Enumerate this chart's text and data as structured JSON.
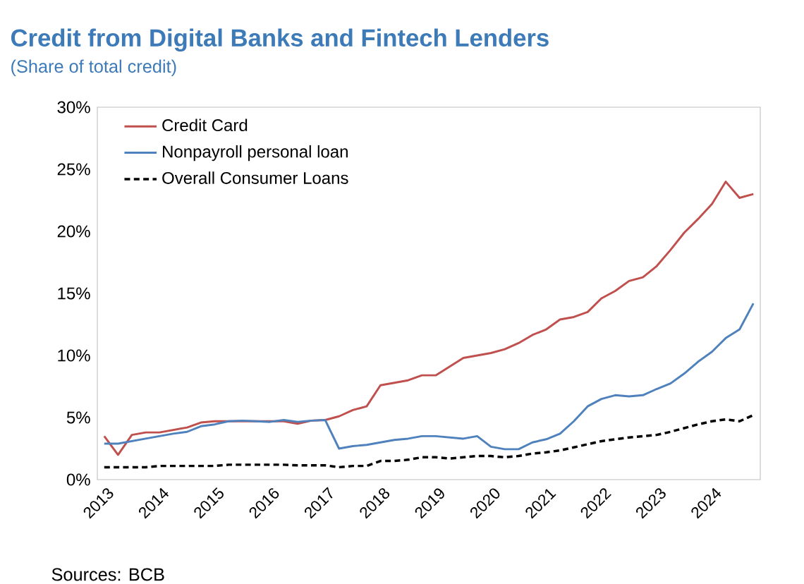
{
  "chart_data": {
    "type": "line",
    "title": "Credit from Digital Banks and Fintech Lenders",
    "subtitle": "(Share of total credit)",
    "annotations": [
      "Sources: BCB"
    ],
    "categories": [
      "2013",
      null,
      null,
      null,
      "2014",
      null,
      null,
      null,
      "2015",
      null,
      null,
      null,
      "2016",
      null,
      null,
      null,
      "2017",
      null,
      null,
      null,
      "2018",
      null,
      null,
      null,
      "2019",
      null,
      null,
      null,
      "2020",
      null,
      null,
      null,
      "2021",
      null,
      null,
      null,
      "2022",
      null,
      null,
      null,
      "2023",
      null,
      null,
      null,
      "2024",
      null,
      null,
      null
    ],
    "series": [
      {
        "name": "Credit Card",
        "color": "#c0504d",
        "line_style": "solid",
        "values": [
          3.5,
          2.0,
          3.6,
          3.8,
          3.8,
          4.0,
          4.2,
          4.6,
          4.7,
          4.7,
          4.7,
          4.7,
          4.7,
          4.7,
          4.5,
          4.75,
          4.8,
          5.1,
          5.6,
          5.9,
          7.6,
          7.8,
          8.0,
          8.4,
          8.4,
          9.1,
          9.8,
          10.0,
          10.2,
          10.5,
          11.0,
          11.65,
          12.1,
          12.9,
          13.1,
          13.5,
          14.6,
          15.2,
          16.0,
          16.3,
          17.2,
          18.5,
          19.9,
          21.0,
          22.2,
          24.0,
          22.7,
          23.0
        ]
      },
      {
        "name": "Nonpayroll personal loan",
        "color": "#4f81bd",
        "line_style": "solid",
        "values": [
          2.9,
          2.9,
          3.1,
          3.3,
          3.5,
          3.7,
          3.85,
          4.3,
          4.45,
          4.7,
          4.75,
          4.7,
          4.65,
          4.8,
          4.65,
          4.75,
          4.8,
          2.5,
          2.7,
          2.8,
          3.0,
          3.2,
          3.3,
          3.5,
          3.5,
          3.4,
          3.3,
          3.5,
          2.65,
          2.45,
          2.45,
          3.0,
          3.25,
          3.7,
          4.7,
          5.9,
          6.5,
          6.8,
          6.7,
          6.8,
          7.3,
          7.75,
          8.55,
          9.5,
          10.3,
          11.4,
          12.1,
          14.2
        ]
      },
      {
        "name": "Overall Consumer Loans",
        "color": "#000000",
        "line_style": "dashed",
        "values": [
          1.0,
          1.0,
          1.0,
          1.0,
          1.1,
          1.1,
          1.1,
          1.1,
          1.1,
          1.2,
          1.2,
          1.2,
          1.2,
          1.2,
          1.15,
          1.15,
          1.15,
          1.0,
          1.1,
          1.1,
          1.5,
          1.5,
          1.6,
          1.8,
          1.8,
          1.7,
          1.8,
          1.9,
          1.9,
          1.8,
          1.9,
          2.1,
          2.2,
          2.35,
          2.6,
          2.85,
          3.1,
          3.25,
          3.4,
          3.5,
          3.6,
          3.85,
          4.15,
          4.45,
          4.7,
          4.85,
          4.7,
          5.2
        ]
      }
    ],
    "ylim": [
      0,
      30
    ],
    "yticks": [
      {
        "value": 0,
        "label": "0%"
      },
      {
        "value": 5,
        "label": "5%"
      },
      {
        "value": 10,
        "label": "10%"
      },
      {
        "value": 15,
        "label": "15%"
      },
      {
        "value": 20,
        "label": "20%"
      },
      {
        "value": 25,
        "label": "25%"
      },
      {
        "value": 30,
        "label": "30%"
      }
    ],
    "grid": false,
    "legend": "top left",
    "marker": "none"
  }
}
